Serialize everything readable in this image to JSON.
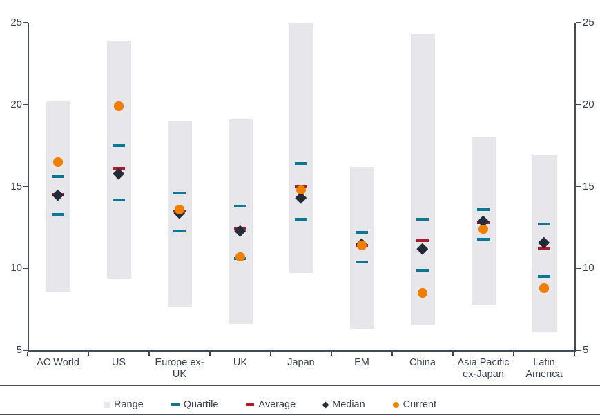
{
  "chart_data": {
    "type": "range-marker",
    "title": "",
    "xlabel": "",
    "ylabel": "",
    "ylim": [
      5,
      25
    ],
    "yticks": [
      5,
      10,
      15,
      20,
      25
    ],
    "grid": false,
    "legend_position": "bottom",
    "categories": [
      "AC World",
      "US",
      "Europe ex-UK",
      "UK",
      "Japan",
      "EM",
      "China",
      "Asia Pacific ex-Japan",
      "Latin America"
    ],
    "category_label_lines": [
      [
        "AC World"
      ],
      [
        "US"
      ],
      [
        "Europe ex-",
        "UK"
      ],
      [
        "UK"
      ],
      [
        "Japan"
      ],
      [
        "EM"
      ],
      [
        "China"
      ],
      [
        "Asia Pacific",
        "ex-Japan"
      ],
      [
        "Latin",
        "America"
      ]
    ],
    "series": [
      {
        "name": "Range",
        "marker": "bar",
        "low": [
          8.6,
          9.4,
          7.6,
          6.6,
          9.7,
          6.3,
          6.5,
          7.8,
          6.1
        ],
        "high": [
          20.2,
          23.9,
          19.0,
          19.1,
          25.0,
          16.2,
          24.3,
          18.0,
          16.9
        ],
        "color": "#e7e7eb"
      },
      {
        "name": "Quartile",
        "marker": "dash",
        "lower": [
          13.3,
          14.2,
          12.3,
          10.6,
          13.0,
          10.4,
          9.9,
          11.8,
          9.5
        ],
        "upper": [
          15.6,
          17.5,
          14.6,
          13.8,
          16.4,
          12.2,
          13.0,
          13.6,
          12.7
        ],
        "color": "#0c7795"
      },
      {
        "name": "Average",
        "marker": "dash",
        "values": [
          14.5,
          16.1,
          13.5,
          12.4,
          15.0,
          11.4,
          11.7,
          12.8,
          11.2
        ],
        "color": "#aa1e2c"
      },
      {
        "name": "Median",
        "marker": "diamond",
        "values": [
          14.5,
          15.8,
          13.4,
          12.3,
          14.3,
          11.5,
          11.2,
          12.9,
          11.6
        ],
        "color": "#232b39"
      },
      {
        "name": "Current",
        "marker": "circle",
        "values": [
          16.5,
          19.9,
          13.6,
          10.7,
          14.8,
          11.4,
          8.5,
          12.4,
          8.8
        ],
        "color": "#f07e00"
      }
    ],
    "legend_items": [
      {
        "label": "Range",
        "marker": "bar"
      },
      {
        "label": "Quartile",
        "marker": "dash-quartile"
      },
      {
        "label": "Average",
        "marker": "dash-average"
      },
      {
        "label": "Median",
        "marker": "diamond"
      },
      {
        "label": "Current",
        "marker": "circle"
      }
    ],
    "colors": {
      "range": "#e7e7eb",
      "quartile": "#0c7795",
      "average": "#aa1e2c",
      "median": "#232b39",
      "current": "#f07e00",
      "axis": "#414a55",
      "text": "#39424d"
    }
  }
}
